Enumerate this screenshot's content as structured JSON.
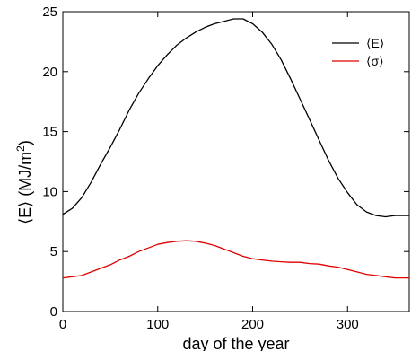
{
  "chart_data": {
    "type": "line",
    "title": "",
    "xlabel": "day of the year",
    "ylabel_main": "⟨E⟩ (MJ/m",
    "ylabel_sup": "2",
    "ylabel_tail": ")",
    "xlim": [
      0,
      365
    ],
    "ylim": [
      0,
      25
    ],
    "xticks": [
      0,
      100,
      200,
      300
    ],
    "yticks": [
      0,
      5,
      10,
      15,
      20,
      25
    ],
    "grid": false,
    "legend_position": "top-right",
    "series": [
      {
        "name": "⟨E⟩",
        "color": "#000000",
        "x": [
          0,
          10,
          20,
          30,
          40,
          50,
          60,
          70,
          80,
          90,
          100,
          110,
          120,
          130,
          140,
          150,
          160,
          170,
          180,
          190,
          200,
          210,
          220,
          230,
          240,
          250,
          260,
          270,
          280,
          290,
          300,
          310,
          320,
          330,
          340,
          350,
          360,
          365
        ],
        "y": [
          8.1,
          8.6,
          9.5,
          10.8,
          12.3,
          13.7,
          15.2,
          16.8,
          18.2,
          19.4,
          20.5,
          21.4,
          22.2,
          22.8,
          23.3,
          23.7,
          24.0,
          24.2,
          24.4,
          24.4,
          24.0,
          23.3,
          22.3,
          21.0,
          19.4,
          17.7,
          16.0,
          14.3,
          12.6,
          11.1,
          9.9,
          8.9,
          8.3,
          8.0,
          7.9,
          8.0,
          8.0,
          8.0
        ]
      },
      {
        "name": "⟨σ⟩",
        "color": "#e00000",
        "x": [
          0,
          10,
          20,
          30,
          40,
          50,
          60,
          70,
          80,
          90,
          100,
          110,
          120,
          130,
          140,
          150,
          160,
          170,
          180,
          190,
          200,
          210,
          220,
          230,
          240,
          250,
          260,
          270,
          280,
          290,
          300,
          310,
          320,
          330,
          340,
          350,
          360,
          365
        ],
        "y": [
          2.8,
          2.9,
          3.0,
          3.3,
          3.6,
          3.9,
          4.3,
          4.6,
          5.0,
          5.3,
          5.6,
          5.75,
          5.85,
          5.9,
          5.85,
          5.7,
          5.5,
          5.2,
          4.9,
          4.6,
          4.4,
          4.3,
          4.2,
          4.15,
          4.1,
          4.1,
          4.0,
          3.95,
          3.8,
          3.7,
          3.5,
          3.3,
          3.1,
          3.0,
          2.9,
          2.8,
          2.8,
          2.8
        ]
      }
    ]
  }
}
